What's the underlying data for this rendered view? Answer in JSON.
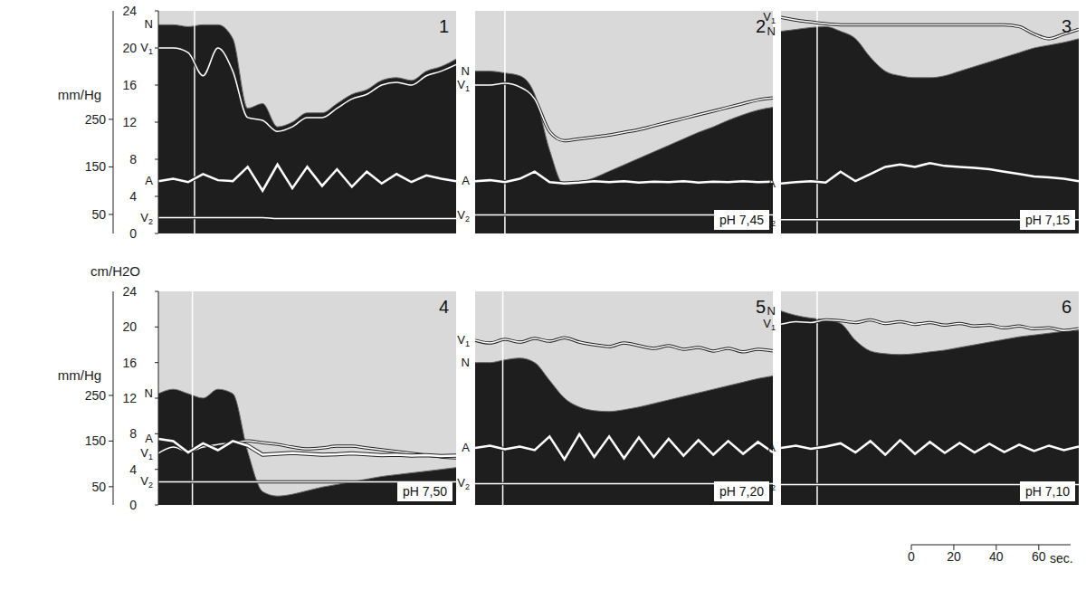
{
  "chart_data": [
    {
      "type": "line",
      "title": "1",
      "x": [
        0,
        7,
        14,
        21,
        28,
        35,
        42,
        49,
        56,
        63,
        70,
        77,
        84,
        91,
        98,
        105,
        112,
        119,
        126,
        133,
        140
      ],
      "xlim": [
        0,
        140
      ],
      "ylim": [
        0,
        24
      ],
      "yticks": [
        0,
        4,
        8,
        12,
        16,
        20,
        24
      ],
      "y2lim": [
        10,
        478
      ],
      "y2ticks": [
        50,
        150,
        250
      ],
      "tick_labels": "y",
      "y2_label": "mm/Hg",
      "event_x": 17,
      "series": [
        {
          "name": "N",
          "type": "area",
          "color": "#1e1e1e",
          "values": [
            22.5,
            22.5,
            22.3,
            22.5,
            22.5,
            21,
            13.5,
            14,
            11.5,
            12,
            13,
            13,
            14,
            15,
            15.5,
            16.5,
            16.8,
            16.5,
            17.5,
            18,
            18.8
          ]
        },
        {
          "name": "V1",
          "type": "line",
          "color": "#ffffff",
          "values": [
            20,
            20,
            19.5,
            17,
            20,
            17.5,
            12.5,
            12.2,
            11,
            11.5,
            12.5,
            12.5,
            13.5,
            14.5,
            15,
            16,
            16.3,
            16,
            17,
            17.5,
            18.2
          ]
        },
        {
          "name": "A",
          "type": "line",
          "color": "#ffffff",
          "axis": "y2",
          "values": [
            120,
            125,
            118,
            135,
            122,
            120,
            150,
            100,
            155,
            105,
            150,
            110,
            145,
            108,
            140,
            115,
            135,
            118,
            132,
            125,
            120
          ]
        },
        {
          "name": "V2",
          "type": "line",
          "color": "#ffffff",
          "values": [
            1.7,
            1.7,
            1.7,
            1.7,
            1.7,
            1.7,
            1.7,
            1.7,
            1.6,
            1.6,
            1.6,
            1.6,
            1.6,
            1.6,
            1.6,
            1.6,
            1.6,
            1.6,
            1.6,
            1.6,
            1.6
          ]
        }
      ]
    },
    {
      "type": "line",
      "title": "2",
      "x": [
        0,
        7,
        14,
        21,
        28,
        35,
        42,
        49,
        56,
        63,
        70,
        77,
        84,
        91,
        98,
        105,
        112,
        119,
        126,
        133,
        140
      ],
      "xlim": [
        0,
        140
      ],
      "ylim": [
        0,
        24
      ],
      "yticks": [
        0,
        4,
        8,
        12,
        16,
        20,
        24
      ],
      "y2lim": [
        10,
        478
      ],
      "y2ticks": [
        50,
        150,
        250
      ],
      "tick_labels": false,
      "event_x": 14,
      "annotation": "pH 7,45",
      "series": [
        {
          "name": "N",
          "type": "area",
          "color": "#1e1e1e",
          "values": [
            17.5,
            17.5,
            17.3,
            17,
            15,
            9,
            5.2,
            5.5,
            6,
            6.7,
            7.4,
            8.1,
            8.8,
            9.5,
            10.2,
            10.9,
            11.5,
            12.2,
            12.8,
            13.3,
            13.6
          ]
        },
        {
          "name": "V1",
          "type": "line",
          "color": "#ffffff",
          "values": [
            16,
            16,
            16.2,
            15.8,
            14.5,
            11,
            10,
            10.2,
            10.4,
            10.6,
            10.9,
            11.2,
            11.6,
            12,
            12.4,
            12.8,
            13.2,
            13.6,
            14,
            14.4,
            14.6
          ]
        },
        {
          "name": "A",
          "type": "line",
          "color": "#ffffff",
          "axis": "y2",
          "values": [
            120,
            122,
            118,
            125,
            140,
            118,
            115,
            117,
            120,
            118,
            120,
            117,
            119,
            118,
            120,
            117,
            119,
            118,
            120,
            118,
            119
          ]
        },
        {
          "name": "V2",
          "type": "line",
          "color": "#ffffff",
          "values": [
            2,
            2,
            2,
            2,
            2,
            2,
            2,
            2,
            2,
            2,
            2,
            2,
            2,
            2,
            2,
            2,
            2,
            2,
            2,
            2,
            2
          ]
        }
      ]
    },
    {
      "type": "line",
      "title": "3",
      "x": [
        0,
        7,
        14,
        21,
        28,
        35,
        42,
        49,
        56,
        63,
        70,
        77,
        84,
        91,
        98,
        105,
        112,
        119,
        126,
        133,
        140
      ],
      "xlim": [
        0,
        140
      ],
      "ylim": [
        0,
        24
      ],
      "yticks": [
        0,
        4,
        8,
        12,
        16,
        20,
        24
      ],
      "y2lim": [
        10,
        478
      ],
      "y2ticks": [
        50,
        150,
        250
      ],
      "tick_labels": false,
      "event_x": 17,
      "annotation": "pH 7,15",
      "series": [
        {
          "name": "N",
          "type": "area",
          "color": "#1e1e1e",
          "values": [
            21.8,
            22,
            22.2,
            22.3,
            21.8,
            21,
            19,
            17.5,
            17,
            16.8,
            16.8,
            17,
            17.5,
            18,
            18.5,
            19,
            19.5,
            20,
            20.3,
            20.6,
            21
          ]
        },
        {
          "name": "V1",
          "type": "line",
          "color": "#ffffff",
          "values": [
            23.3,
            23,
            22.8,
            22.6,
            22.5,
            22.5,
            22.5,
            22.5,
            22.5,
            22.5,
            22.5,
            22.5,
            22.5,
            22.5,
            22.5,
            22.5,
            22.3,
            21.5,
            21,
            21.5,
            22
          ]
        },
        {
          "name": "A",
          "type": "line",
          "color": "#ffffff",
          "axis": "y2",
          "values": [
            115,
            118,
            120,
            117,
            140,
            120,
            135,
            150,
            155,
            150,
            158,
            152,
            150,
            148,
            145,
            140,
            135,
            130,
            128,
            125,
            120
          ]
        },
        {
          "name": "V2",
          "type": "line",
          "color": "#ffffff",
          "values": [
            1.5,
            1.5,
            1.5,
            1.5,
            1.5,
            1.5,
            1.5,
            1.5,
            1.5,
            1.5,
            1.5,
            1.5,
            1.5,
            1.5,
            1.5,
            1.5,
            1.5,
            1.5,
            1.5,
            1.5,
            1.5
          ]
        }
      ]
    },
    {
      "type": "line",
      "title": "4",
      "x": [
        0,
        7,
        14,
        21,
        28,
        35,
        42,
        49,
        56,
        63,
        70,
        77,
        84,
        91,
        98,
        105,
        112,
        119,
        126,
        133,
        140
      ],
      "xlim": [
        0,
        140
      ],
      "ylim": [
        0,
        24
      ],
      "yticks": [
        0,
        4,
        8,
        12,
        16,
        20,
        24
      ],
      "y2lim": [
        10,
        478
      ],
      "y2ticks": [
        50,
        150,
        250
      ],
      "tick_labels": "y",
      "y_label": "cm/H2O",
      "y2_label": "mm/Hg",
      "event_x": 16,
      "annotation": "pH 7,50",
      "series": [
        {
          "name": "N",
          "type": "area",
          "color": "#1e1e1e",
          "values": [
            12.5,
            13,
            12.5,
            12,
            13,
            12.5,
            6,
            1.5,
            1,
            1.2,
            1.6,
            2,
            2.3,
            2.6,
            2.9,
            3.2,
            3.4,
            3.6,
            3.8,
            4,
            4.2
          ]
        },
        {
          "name": "V1",
          "type": "line",
          "color": "#ffffff",
          "values": [
            5.8,
            6.5,
            6,
            6.5,
            6.8,
            7,
            7.2,
            7,
            6.8,
            6.5,
            6.3,
            6.4,
            6.6,
            6.6,
            6.4,
            6.2,
            6,
            5.8,
            5.6,
            5.4,
            5.3
          ]
        },
        {
          "name": "A",
          "type": "line",
          "color": "#ffffff",
          "axis": "y2",
          "values": [
            155,
            150,
            125,
            145,
            130,
            150,
            140,
            120,
            122,
            124,
            122,
            120,
            121,
            123,
            121,
            119,
            120,
            118,
            119,
            117,
            118
          ]
        },
        {
          "name": "V2",
          "type": "line",
          "color": "#ffffff",
          "values": [
            2.6,
            2.6,
            2.6,
            2.6,
            2.6,
            2.6,
            2.6,
            2.6,
            2.6,
            2.6,
            2.6,
            2.6,
            2.6,
            2.6,
            2.6,
            2.6,
            2.6,
            2.6,
            2.6,
            2.6,
            2.6
          ]
        }
      ]
    },
    {
      "type": "line",
      "title": "5",
      "x": [
        0,
        7,
        14,
        21,
        28,
        35,
        42,
        49,
        56,
        63,
        70,
        77,
        84,
        91,
        98,
        105,
        112,
        119,
        126,
        133,
        140
      ],
      "xlim": [
        0,
        140
      ],
      "ylim": [
        0,
        24
      ],
      "yticks": [
        0,
        4,
        8,
        12,
        16,
        20,
        24
      ],
      "y2lim": [
        10,
        478
      ],
      "y2ticks": [
        50,
        150,
        250
      ],
      "tick_labels": false,
      "event_x": 13,
      "annotation": "pH 7,20",
      "series": [
        {
          "name": "N",
          "type": "area",
          "color": "#1e1e1e",
          "values": [
            16,
            16,
            16.3,
            16.5,
            16,
            14,
            12,
            11,
            10.6,
            10.5,
            10.7,
            11,
            11.4,
            11.8,
            12.2,
            12.6,
            13,
            13.4,
            13.8,
            14.2,
            14.5
          ]
        },
        {
          "name": "V1",
          "type": "line",
          "color": "#ffffff",
          "values": [
            18.5,
            18.2,
            18.6,
            18.3,
            18.7,
            18.4,
            18.8,
            18.3,
            18,
            17.8,
            18.2,
            17.9,
            17.6,
            17.9,
            17.5,
            17.7,
            17.3,
            17.6,
            17.2,
            17.5,
            17.3
          ]
        },
        {
          "name": "A",
          "type": "line",
          "color": "#ffffff",
          "axis": "y2",
          "values": [
            135,
            140,
            132,
            138,
            130,
            160,
            110,
            165,
            115,
            160,
            112,
            158,
            115,
            155,
            118,
            152,
            120,
            150,
            122,
            148,
            125
          ]
        },
        {
          "name": "V2",
          "type": "line",
          "color": "#ffffff",
          "values": [
            2.4,
            2.4,
            2.4,
            2.4,
            2.4,
            2.4,
            2.4,
            2.4,
            2.4,
            2.4,
            2.4,
            2.4,
            2.4,
            2.4,
            2.4,
            2.4,
            2.4,
            2.4,
            2.4,
            2.4,
            2.4
          ]
        }
      ]
    },
    {
      "type": "line",
      "title": "6",
      "x": [
        0,
        7,
        14,
        21,
        28,
        35,
        42,
        49,
        56,
        63,
        70,
        77,
        84,
        91,
        98,
        105,
        112,
        119,
        126,
        133,
        140
      ],
      "xlim": [
        0,
        140
      ],
      "ylim": [
        0,
        24
      ],
      "yticks": [
        0,
        4,
        8,
        12,
        16,
        20,
        24
      ],
      "y2lim": [
        10,
        478
      ],
      "y2ticks": [
        50,
        150,
        250
      ],
      "tick_labels": false,
      "event_x": 17,
      "annotation": "pH 7,10",
      "series": [
        {
          "name": "N",
          "type": "area",
          "color": "#1e1e1e",
          "values": [
            21.8,
            21.3,
            21,
            20.8,
            20.4,
            18.5,
            17.3,
            17,
            16.9,
            17,
            17.2,
            17.4,
            17.7,
            18,
            18.3,
            18.6,
            18.9,
            19.1,
            19.3,
            19.5,
            19.6
          ]
        },
        {
          "name": "V1",
          "type": "line",
          "color": "#ffffff",
          "values": [
            20.3,
            20.6,
            20.5,
            20.8,
            20.7,
            20.5,
            20.8,
            20.4,
            20.6,
            20.3,
            20.5,
            20.2,
            20.4,
            20.1,
            20.2,
            19.9,
            20.1,
            19.8,
            19.9,
            19.6,
            19.8
          ]
        },
        {
          "name": "A",
          "type": "line",
          "color": "#ffffff",
          "axis": "y2",
          "values": [
            135,
            140,
            133,
            138,
            145,
            125,
            150,
            120,
            152,
            122,
            148,
            124,
            146,
            125,
            144,
            126,
            142,
            128,
            140,
            130,
            138
          ]
        },
        {
          "name": "V2",
          "type": "line",
          "color": "#ffffff",
          "values": [
            2.3,
            2.3,
            2.3,
            2.3,
            2.3,
            2.3,
            2.3,
            2.3,
            2.3,
            2.3,
            2.3,
            2.3,
            2.3,
            2.3,
            2.3,
            2.3,
            2.3,
            2.3,
            2.3,
            2.3,
            2.3
          ]
        }
      ]
    },
    {
      "type": "scale_bar",
      "xlim": [
        0,
        75
      ],
      "xticks": [
        0,
        20,
        40,
        60
      ],
      "x_label": "sec."
    }
  ]
}
